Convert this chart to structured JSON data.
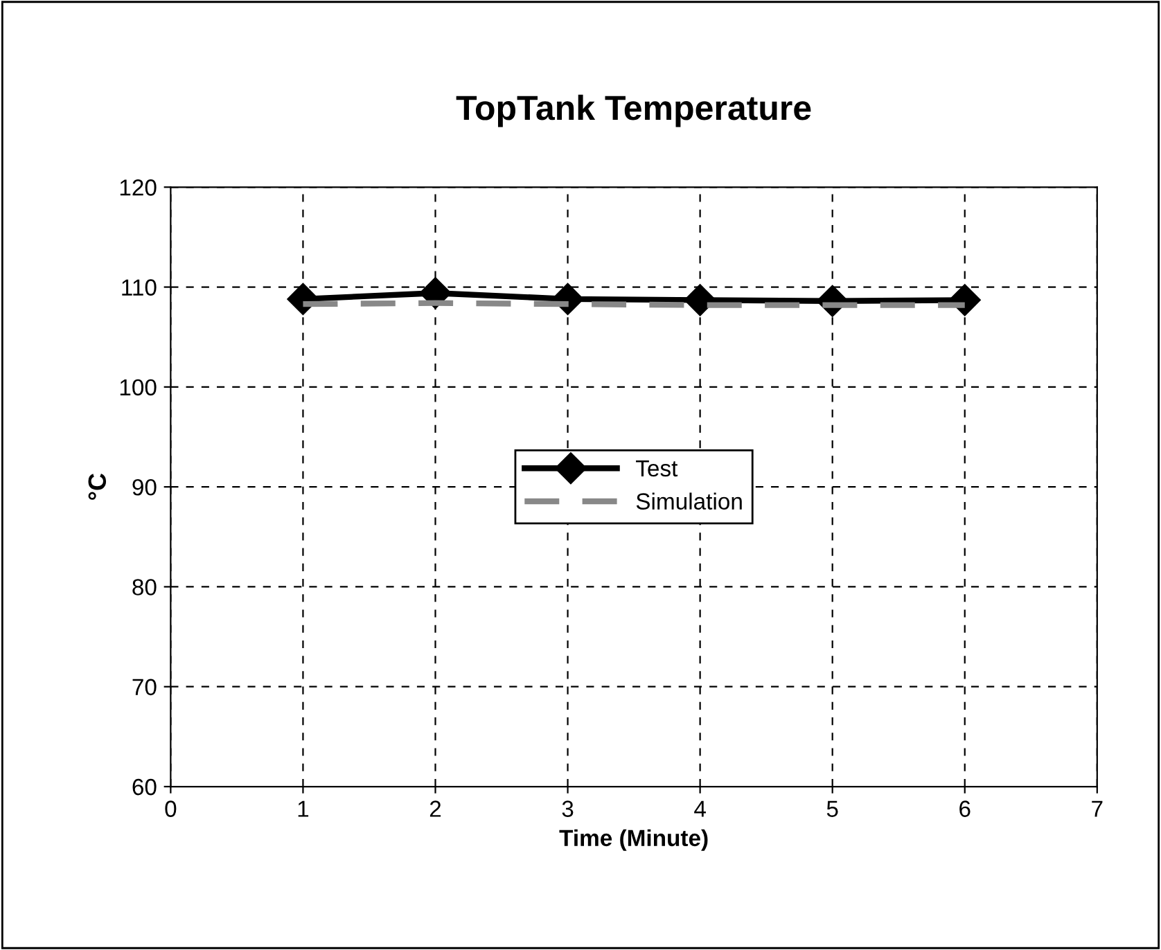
{
  "chart_data": {
    "type": "line",
    "title": "TopTank Temperature",
    "xlabel": "Time (Minute)",
    "ylabel": "°C",
    "x": [
      1,
      2,
      3,
      4,
      5,
      6
    ],
    "series": [
      {
        "name": "Test",
        "color": "#000000",
        "values": [
          108.8,
          109.4,
          108.8,
          108.7,
          108.6,
          108.7
        ],
        "marker": "diamond",
        "line_style": "solid"
      },
      {
        "name": "Simulation",
        "color": "#888888",
        "values": [
          108.3,
          108.4,
          108.3,
          108.2,
          108.2,
          108.2
        ],
        "marker": "none",
        "line_style": "dashed"
      }
    ],
    "xlim": [
      0,
      7
    ],
    "xticks": [
      0,
      1,
      2,
      3,
      4,
      5,
      6,
      7
    ],
    "ylim": [
      60,
      120
    ],
    "yticks": [
      60,
      70,
      80,
      90,
      100,
      110,
      120
    ],
    "grid": true,
    "legend": "center"
  }
}
